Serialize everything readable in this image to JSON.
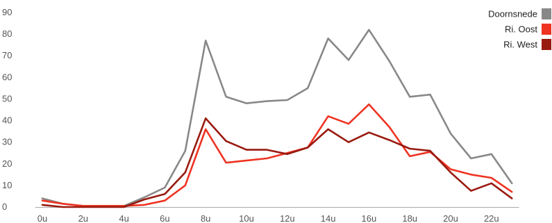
{
  "chart_data": {
    "type": "line",
    "title": "",
    "xlabel": "",
    "ylabel": "",
    "x": [
      0,
      1,
      2,
      3,
      4,
      5,
      6,
      7,
      8,
      9,
      10,
      11,
      12,
      13,
      14,
      15,
      16,
      17,
      18,
      19,
      20,
      21,
      22,
      23
    ],
    "x_tick_values": [
      0,
      2,
      4,
      6,
      8,
      10,
      12,
      14,
      16,
      18,
      20,
      22
    ],
    "x_tick_labels": [
      "0u",
      "2u",
      "4u",
      "6u",
      "8u",
      "10u",
      "12u",
      "14u",
      "16u",
      "18u",
      "20u",
      "22u"
    ],
    "ylim": [
      0,
      90
    ],
    "y_ticks": [
      0,
      10,
      20,
      30,
      40,
      50,
      60,
      70,
      80,
      90
    ],
    "y_tick_labels": [
      "0",
      "10",
      "20",
      "30",
      "40",
      "50",
      "60",
      "70",
      "80",
      "90"
    ],
    "grid": false,
    "legend_position": "top-right",
    "series": [
      {
        "name": "Doornsnede",
        "color": "#888888",
        "values": [
          4,
          1.5,
          0.5,
          0.5,
          0.5,
          4.5,
          9,
          26,
          77,
          51,
          48,
          49,
          49.5,
          55,
          78,
          68,
          82,
          67.5,
          51,
          52,
          34,
          22.5,
          24.5,
          11
        ]
      },
      {
        "name": "Ri. Oost",
        "color": "#ee3322",
        "values": [
          3,
          1.5,
          0.5,
          0.5,
          0.5,
          1,
          3,
          10,
          36,
          20.5,
          21.5,
          22.5,
          25,
          27.5,
          42,
          38.5,
          47.5,
          37,
          23.5,
          25.5,
          17.5,
          15,
          13.5,
          7
        ]
      },
      {
        "name": "Ri. West",
        "color": "#991a0f",
        "values": [
          1,
          0,
          0,
          0,
          0,
          3.5,
          6,
          16,
          41,
          30.5,
          26.5,
          26.5,
          24.5,
          27.5,
          36,
          30,
          34.5,
          31,
          27,
          26,
          16,
          7.5,
          11,
          4
        ]
      }
    ]
  }
}
